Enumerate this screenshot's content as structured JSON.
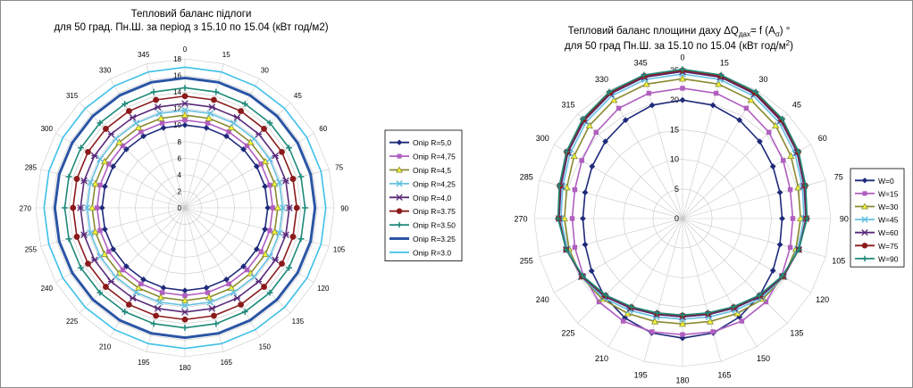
{
  "chart_data": [
    {
      "type": "radar",
      "title": "Тепловий баланс підлоги",
      "subtitle": "для 50 град. Пн.Ш. за період з 15.10 по 15.04 (кВт год/м2)",
      "angles": [
        "0",
        "15",
        "30",
        "45",
        "60",
        "75",
        "90",
        "105",
        "120",
        "135",
        "150",
        "165",
        "180",
        "195",
        "210",
        "225",
        "240",
        "255",
        "270",
        "285",
        "300",
        "315",
        "330",
        "345"
      ],
      "radial_ticks": [
        "0",
        "2",
        "4",
        "6",
        "8",
        "10",
        "12",
        "14",
        "16",
        "18"
      ],
      "rlim": [
        0,
        18
      ],
      "grid": true,
      "legend_position": "right",
      "series": [
        {
          "name": "Опір R=5,0",
          "color": "#1f2a7a",
          "marker": "diamond",
          "values": [
            10,
            10,
            10,
            10,
            10,
            10,
            10,
            10,
            10,
            10,
            10,
            10,
            10,
            10,
            10,
            10,
            10,
            10,
            10,
            10,
            10,
            10,
            10,
            10
          ]
        },
        {
          "name": "Опір R=4,75",
          "color": "#b05fc0",
          "marker": "square",
          "values": [
            10.6,
            10.6,
            10.6,
            10.6,
            10.6,
            10.6,
            10.6,
            10.6,
            10.6,
            10.6,
            10.6,
            10.6,
            10.6,
            10.6,
            10.6,
            10.6,
            10.6,
            10.6,
            10.6,
            10.6,
            10.6,
            10.6,
            10.6,
            10.6
          ]
        },
        {
          "name": "Опір R=4,5",
          "color": "#8a8a30",
          "marker": "triangle",
          "values": [
            11.2,
            11.2,
            11.2,
            11.2,
            11.2,
            11.2,
            11.2,
            11.2,
            11.2,
            11.2,
            11.2,
            11.2,
            11.2,
            11.2,
            11.2,
            11.2,
            11.2,
            11.2,
            11.2,
            11.2,
            11.2,
            11.2,
            11.2,
            11.2
          ]
        },
        {
          "name": "Опір R=4,25",
          "color": "#66c0e0",
          "marker": "x",
          "values": [
            11.8,
            11.8,
            11.8,
            11.8,
            11.8,
            11.8,
            11.8,
            11.8,
            11.8,
            11.8,
            11.8,
            11.8,
            11.8,
            11.8,
            11.8,
            11.8,
            11.8,
            11.8,
            11.8,
            11.8,
            11.8,
            11.8,
            11.8,
            11.8
          ]
        },
        {
          "name": "Опір R=4,0",
          "color": "#5a2a7a",
          "marker": "star",
          "values": [
            12.6,
            12.6,
            12.6,
            12.6,
            12.6,
            12.6,
            12.6,
            12.6,
            12.6,
            12.6,
            12.6,
            12.6,
            12.6,
            12.6,
            12.6,
            12.6,
            12.6,
            12.6,
            12.6,
            12.6,
            12.6,
            12.6,
            12.6,
            12.6
          ]
        },
        {
          "name": "Опір R=3.75",
          "color": "#8b1a1a",
          "marker": "circle",
          "values": [
            13.5,
            13.5,
            13.5,
            13.5,
            13.5,
            13.5,
            13.5,
            13.5,
            13.5,
            13.5,
            13.5,
            13.5,
            13.5,
            13.5,
            13.5,
            13.5,
            13.5,
            13.5,
            13.5,
            13.5,
            13.5,
            13.5,
            13.5,
            13.5
          ]
        },
        {
          "name": "Опір R=3.50",
          "color": "#1f8a7a",
          "marker": "plus",
          "values": [
            14.5,
            14.5,
            14.5,
            14.5,
            14.5,
            14.5,
            14.5,
            14.5,
            14.5,
            14.5,
            14.5,
            14.5,
            14.5,
            14.5,
            14.5,
            14.5,
            14.5,
            14.5,
            14.5,
            14.5,
            14.5,
            14.5,
            14.5,
            14.5
          ]
        },
        {
          "name": "Опір R=3.25",
          "color": "#2b55a5",
          "marker": "none",
          "thick": true,
          "values": [
            15.7,
            15.7,
            15.7,
            15.7,
            15.7,
            15.7,
            15.7,
            15.7,
            15.7,
            15.7,
            15.7,
            15.7,
            15.7,
            15.7,
            15.7,
            15.7,
            15.7,
            15.7,
            15.7,
            15.7,
            15.7,
            15.7,
            15.7,
            15.7
          ]
        },
        {
          "name": "Опір R=3.0",
          "color": "#3fc0e8",
          "marker": "none",
          "values": [
            17.0,
            17.0,
            17.0,
            17.0,
            17.0,
            17.0,
            17.0,
            17.0,
            17.0,
            17.0,
            17.0,
            17.0,
            17.0,
            17.0,
            17.0,
            17.0,
            17.0,
            17.0,
            17.0,
            17.0,
            17.0,
            17.0,
            17.0,
            17.0
          ]
        }
      ]
    },
    {
      "type": "radar",
      "title_main": "Тепловий баланс площини даху ΔQ",
      "title_sub_a": "дах",
      "title_mid": "= f (A",
      "title_sub_b": "σ",
      "title_end": ")  °",
      "subtitle_main": "для 50 град Пн.Ш. за 15.10 по 15.04 (кВт год/м",
      "subtitle_sup": "2",
      "subtitle_end": ")",
      "angles": [
        "0",
        "15",
        "30",
        "45",
        "60",
        "75",
        "90",
        "105",
        "120",
        "135",
        "150",
        "165",
        "180",
        "195",
        "210",
        "225",
        "240",
        "255",
        "270",
        "285",
        "300",
        "315",
        "330",
        "345"
      ],
      "radial_ticks": [
        "0",
        "5",
        "10",
        "15",
        "20",
        "25"
      ],
      "rlim": [
        0,
        25
      ],
      "grid": true,
      "legend_position": "right",
      "series": [
        {
          "name": "W=0",
          "color": "#1f2a7a",
          "marker": "diamond",
          "values": [
            20,
            19.8,
            19.2,
            18.4,
            17.6,
            17.0,
            16.8,
            17.0,
            17.6,
            18.4,
            19.2,
            20.0,
            20.2,
            20.0,
            19.4,
            18.6,
            17.7,
            17.0,
            16.8,
            17.0,
            17.6,
            18.4,
            19.2,
            19.8
          ]
        },
        {
          "name": "W=15",
          "color": "#b05fc0",
          "marker": "square",
          "values": [
            22.0,
            21.9,
            21.5,
            20.6,
            19.6,
            18.8,
            18.6,
            18.8,
            19.3,
            19.9,
            20.0,
            19.8,
            19.6,
            19.8,
            20.0,
            19.9,
            19.3,
            18.8,
            18.6,
            18.8,
            19.6,
            20.6,
            21.5,
            21.9
          ]
        },
        {
          "name": "W=30",
          "color": "#8a8a30",
          "marker": "triangle",
          "values": [
            23.6,
            23.5,
            23.1,
            22.2,
            21.1,
            20.2,
            19.9,
            19.8,
            19.7,
            19.2,
            18.5,
            18.0,
            17.8,
            18.0,
            18.5,
            19.2,
            19.7,
            19.8,
            19.9,
            20.2,
            21.1,
            22.2,
            23.1,
            23.5
          ]
        },
        {
          "name": "W=45",
          "color": "#66c0e0",
          "marker": "x",
          "values": [
            24.4,
            24.3,
            23.9,
            23.0,
            21.9,
            20.9,
            20.5,
            20.1,
            19.7,
            18.9,
            17.9,
            17.2,
            17.0,
            17.2,
            17.9,
            18.9,
            19.7,
            20.1,
            20.5,
            20.9,
            21.9,
            23.0,
            23.9,
            24.3
          ]
        },
        {
          "name": "W=60",
          "color": "#5a2a7a",
          "marker": "star",
          "values": [
            24.8,
            24.7,
            24.3,
            23.4,
            22.3,
            21.2,
            20.8,
            20.3,
            19.6,
            18.6,
            17.5,
            16.8,
            16.6,
            16.8,
            17.5,
            18.6,
            19.6,
            20.3,
            20.8,
            21.2,
            22.3,
            23.4,
            24.3,
            24.7
          ]
        },
        {
          "name": "W=75",
          "color": "#8b1a1a",
          "marker": "circle",
          "values": [
            25.0,
            24.9,
            24.5,
            23.6,
            22.5,
            21.4,
            20.9,
            20.3,
            19.5,
            18.4,
            17.3,
            16.6,
            16.4,
            16.6,
            17.3,
            18.4,
            19.5,
            20.3,
            20.9,
            21.4,
            22.5,
            23.6,
            24.5,
            24.9
          ]
        },
        {
          "name": "W=90",
          "color": "#1f8a7a",
          "marker": "plus",
          "values": [
            25.2,
            25.1,
            24.7,
            23.8,
            22.6,
            21.5,
            21.0,
            20.3,
            19.4,
            18.3,
            17.2,
            16.5,
            16.3,
            16.5,
            17.2,
            18.3,
            19.4,
            20.3,
            21.0,
            21.5,
            22.6,
            23.8,
            24.7,
            25.1
          ]
        }
      ]
    }
  ]
}
